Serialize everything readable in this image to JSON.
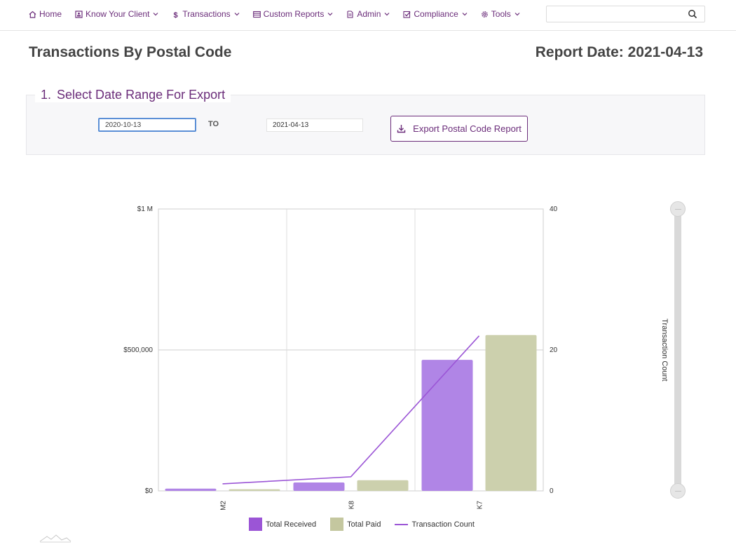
{
  "nav": {
    "items": [
      {
        "label": "Home",
        "icon": "home-icon",
        "has_menu": false
      },
      {
        "label": "Know Your Client",
        "icon": "id-card-icon",
        "has_menu": true
      },
      {
        "label": "Transactions",
        "icon": "dollar-icon",
        "has_menu": true
      },
      {
        "label": "Custom Reports",
        "icon": "table-icon",
        "has_menu": true
      },
      {
        "label": "Admin",
        "icon": "document-icon",
        "has_menu": true
      },
      {
        "label": "Compliance",
        "icon": "checkbox-icon",
        "has_menu": true
      },
      {
        "label": "Tools",
        "icon": "gear-icon",
        "has_menu": true
      }
    ],
    "search": {
      "placeholder": "",
      "value": ""
    }
  },
  "page": {
    "title": "Transactions By Postal Code",
    "report_date": "Report Date: 2021-04-13"
  },
  "section": {
    "number": "1.",
    "title": "Select Date Range For Export",
    "from_value": "2020-10-13",
    "to_label": "TO",
    "to_value": "2021-04-13",
    "export_label": "Export Postal Code Report"
  },
  "colors": {
    "accent": "#6b2d7a",
    "received": "#b085e6",
    "paid": "#ccd0ad",
    "count_line": "#9b55d6",
    "legend_received": "#9b55d6",
    "legend_paid": "#c4c79f"
  },
  "chart_data": {
    "type": "bar",
    "categories": [
      "M2",
      "K8",
      "K7"
    ],
    "series": [
      {
        "name": "Total Received",
        "values": [
          8000,
          30000,
          465000
        ],
        "axis": "left",
        "kind": "bar"
      },
      {
        "name": "Total Paid",
        "values": [
          6000,
          38000,
          553000
        ],
        "axis": "left",
        "kind": "bar"
      },
      {
        "name": "Transaction Count",
        "values": [
          1,
          2,
          22
        ],
        "axis": "right",
        "kind": "line"
      }
    ],
    "y_left": {
      "ylim": [
        0,
        1000000
      ],
      "ticks": [
        0,
        500000,
        1000000
      ],
      "tick_labels": [
        "$0",
        "$500,000",
        "$1 M"
      ]
    },
    "y_right": {
      "ylim": [
        0,
        40
      ],
      "ticks": [
        0,
        20,
        40
      ],
      "tick_labels": [
        "0",
        "20",
        "40"
      ]
    },
    "grid": true,
    "legend_position": "bottom",
    "slider_label": "Transaction Count"
  }
}
